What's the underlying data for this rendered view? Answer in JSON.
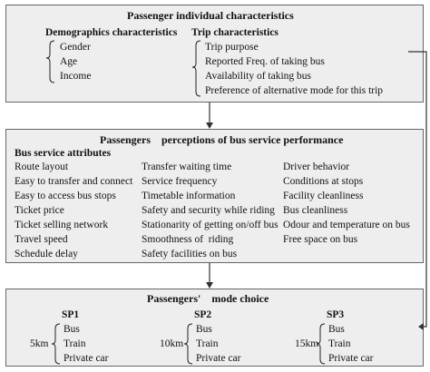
{
  "top_box": {
    "title": "Passenger individual characteristics",
    "demographics": {
      "heading": "Demographics characteristics",
      "items": [
        "Gender",
        "Age",
        "Income"
      ]
    },
    "trip": {
      "heading": "Trip characteristics",
      "items": [
        "Trip purpose",
        "Reported Freq. of taking bus",
        "Availability of taking bus",
        "Preference of alternative mode for this trip"
      ]
    }
  },
  "middle_box": {
    "title": "Passengers    perceptions of bus service performance",
    "subheading": "Bus service attributes",
    "columns": [
      [
        "Route layout",
        "Easy to transfer and connect",
        "Easy to access bus stops",
        "Ticket price",
        "Ticket selling network",
        "Travel speed",
        "Schedule delay"
      ],
      [
        "Transfer waiting time",
        "Service frequency",
        "Timetable information",
        "Safety and security while riding",
        "Stationarity of getting on/off bus",
        "Smoothness of  riding",
        "Safety facilities on bus"
      ],
      [
        "Driver behavior",
        "Conditions at stops",
        "Facility cleanliness",
        "Bus cleanliness",
        "Odour and temperature on bus",
        "Free space on bus"
      ]
    ]
  },
  "bottom_box": {
    "title": "Passengers'    mode choice",
    "scenarios": [
      {
        "label": "SP1",
        "distance": "5km",
        "modes": [
          "Bus",
          "Train",
          "Private car"
        ]
      },
      {
        "label": "SP2",
        "distance": "10km",
        "modes": [
          "Bus",
          "Train",
          "Private car"
        ]
      },
      {
        "label": "SP3",
        "distance": "15km",
        "modes": [
          "Bus",
          "Train",
          "Private car"
        ]
      }
    ]
  },
  "colors": {
    "box_fill": "#eeeeee",
    "border": "#666666",
    "arrow": "#333333"
  }
}
